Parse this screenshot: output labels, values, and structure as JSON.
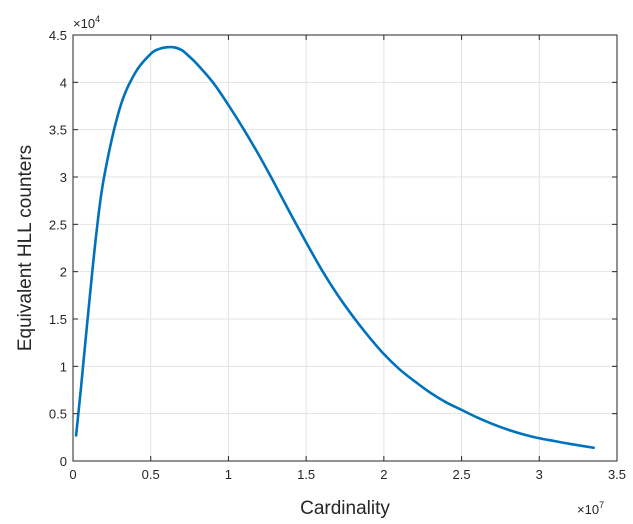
{
  "chart_data": {
    "type": "line",
    "xlabel": "Cardinality",
    "ylabel": "Equivalent HLL counters",
    "xlim": [
      0,
      3.5
    ],
    "ylim": [
      0,
      4.5
    ],
    "x_ticks": [
      0,
      0.5,
      1,
      1.5,
      2,
      2.5,
      3,
      3.5
    ],
    "x_tick_labels": [
      "0",
      "0.5",
      "1",
      "1.5",
      "2",
      "2.5",
      "3",
      "3.5"
    ],
    "y_ticks": [
      0,
      0.5,
      1,
      1.5,
      2,
      2.5,
      3,
      3.5,
      4,
      4.5
    ],
    "y_tick_labels": [
      "0",
      "0.5",
      "1",
      "1.5",
      "2",
      "2.5",
      "3",
      "3.5",
      "4",
      "4.5"
    ],
    "x_multiplier": {
      "base": "×10",
      "exp": "7"
    },
    "y_multiplier": {
      "base": "×10",
      "exp": "4"
    },
    "grid": true,
    "line_color": "#0072BD",
    "series": [
      {
        "x": [
          0.02,
          0.05,
          0.1,
          0.15,
          0.2,
          0.3,
          0.4,
          0.5,
          0.55,
          0.6,
          0.65,
          0.7,
          0.75,
          0.8,
          0.9,
          1.0,
          1.1,
          1.2,
          1.3,
          1.4,
          1.5,
          1.6,
          1.7,
          1.8,
          1.9,
          2.0,
          2.1,
          2.2,
          2.3,
          2.4,
          2.5,
          2.6,
          2.7,
          2.8,
          2.9,
          3.0,
          3.1,
          3.2,
          3.35
        ],
        "values": [
          0.27,
          0.75,
          1.6,
          2.4,
          3.0,
          3.72,
          4.1,
          4.3,
          4.35,
          4.37,
          4.37,
          4.34,
          4.27,
          4.19,
          4.0,
          3.76,
          3.5,
          3.22,
          2.92,
          2.61,
          2.31,
          2.02,
          1.76,
          1.53,
          1.32,
          1.13,
          0.97,
          0.84,
          0.72,
          0.62,
          0.54,
          0.46,
          0.39,
          0.33,
          0.28,
          0.24,
          0.21,
          0.18,
          0.14
        ]
      }
    ]
  }
}
